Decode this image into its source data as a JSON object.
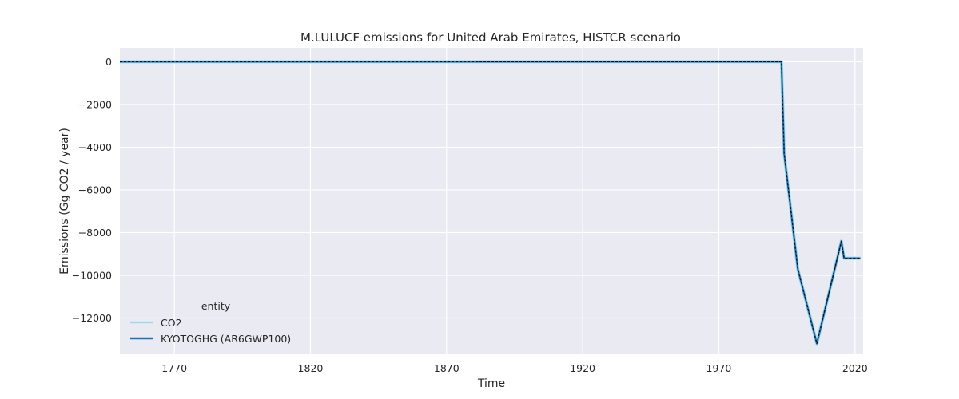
{
  "chart_data": {
    "type": "line",
    "title": "M.LULUCF emissions for United Arab Emirates, HISTCR scenario",
    "xlabel": "Time",
    "ylabel": "Emissions (Gg CO2 / year)",
    "xlim": [
      1750,
      2023
    ],
    "ylim": [
      -13700,
      650
    ],
    "xticks": [
      1770,
      1820,
      1870,
      1920,
      1970,
      2020
    ],
    "yticks": [
      0,
      -2000,
      -4000,
      -6000,
      -8000,
      -10000,
      -12000
    ],
    "ytick_labels": [
      "0",
      "−2000",
      "−4000",
      "−6000",
      "−8000",
      "−10000",
      "−12000"
    ],
    "grid": true,
    "legend": {
      "title": "entity",
      "placement": "lower-left",
      "entries": [
        "CO2",
        "KYOTOGHG (AR6GWP100)"
      ]
    },
    "series": [
      {
        "name": "CO2",
        "color": "#9fdbe6",
        "style": "solid",
        "x": [
          1750,
          1993,
          1994,
          1999,
          2006,
          2015,
          2016,
          2022
        ],
        "y": [
          0,
          0,
          -4300,
          -9700,
          -13200,
          -8400,
          -9200,
          -9200
        ]
      },
      {
        "name": "KYOTOGHG (AR6GWP100)",
        "color": "#1f6fb4",
        "style": "solid",
        "x": [
          1750,
          1993,
          1994,
          1999,
          2006,
          2015,
          2016,
          2022
        ],
        "y": [
          0,
          0,
          -4300,
          -9700,
          -13200,
          -8400,
          -9200,
          -9200
        ]
      }
    ],
    "overlay": {
      "color": "#000000",
      "style": "dashed",
      "x": [
        1750,
        1993,
        1994,
        1999,
        2006,
        2015,
        2016,
        2022
      ],
      "y": [
        0,
        0,
        -4300,
        -9700,
        -13200,
        -8400,
        -9200,
        -9200
      ]
    },
    "colors": {
      "plot_background": "#eaeaf2",
      "grid": "#ffffff"
    }
  }
}
